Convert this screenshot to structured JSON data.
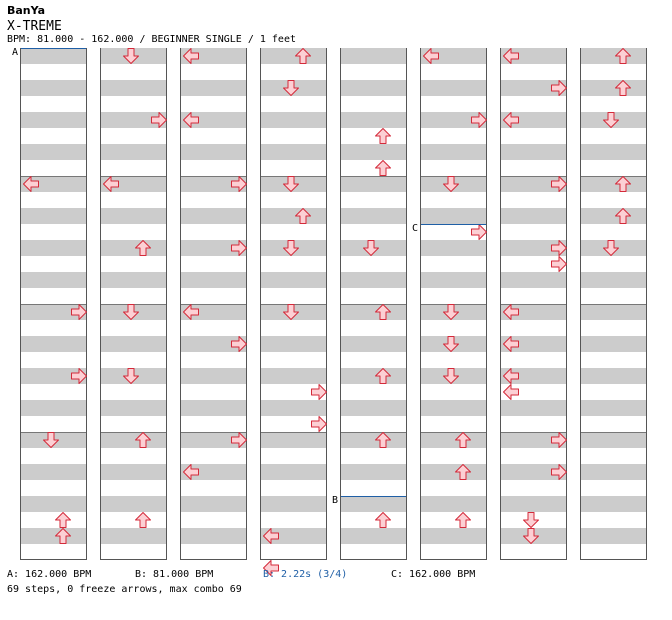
{
  "header": {
    "artist": "BanYa",
    "title": "X-TREME",
    "info": "BPM: 81.000 - 162.000 / BEGINNER SINGLE / 1 feet"
  },
  "chart": {
    "columns": 8,
    "measures_per_column": 4,
    "arrows": [
      {
        "col": 0,
        "beat": 4,
        "dir": "left"
      },
      {
        "col": 0,
        "beat": 8,
        "dir": "right"
      },
      {
        "col": 0,
        "beat": 10,
        "dir": "right"
      },
      {
        "col": 0,
        "beat": 12,
        "dir": "down"
      },
      {
        "col": 0,
        "beat": 14.5,
        "dir": "up"
      },
      {
        "col": 0,
        "beat": 15,
        "dir": "up"
      },
      {
        "col": 1,
        "beat": 0,
        "dir": "down"
      },
      {
        "col": 1,
        "beat": 2,
        "dir": "right"
      },
      {
        "col": 1,
        "beat": 4,
        "dir": "left"
      },
      {
        "col": 1,
        "beat": 6,
        "dir": "up"
      },
      {
        "col": 1,
        "beat": 8,
        "dir": "down"
      },
      {
        "col": 1,
        "beat": 10,
        "dir": "down"
      },
      {
        "col": 1,
        "beat": 12,
        "dir": "up"
      },
      {
        "col": 1,
        "beat": 14.5,
        "dir": "up"
      },
      {
        "col": 2,
        "beat": 0,
        "dir": "left"
      },
      {
        "col": 2,
        "beat": 2,
        "dir": "left"
      },
      {
        "col": 2,
        "beat": 4,
        "dir": "right"
      },
      {
        "col": 2,
        "beat": 6,
        "dir": "right"
      },
      {
        "col": 2,
        "beat": 8,
        "dir": "left"
      },
      {
        "col": 2,
        "beat": 9,
        "dir": "right"
      },
      {
        "col": 2,
        "beat": 12,
        "dir": "right"
      },
      {
        "col": 2,
        "beat": 13,
        "dir": "left"
      },
      {
        "col": 3,
        "beat": 0,
        "dir": "up"
      },
      {
        "col": 3,
        "beat": 1,
        "dir": "down"
      },
      {
        "col": 3,
        "beat": 4,
        "dir": "down"
      },
      {
        "col": 3,
        "beat": 5,
        "dir": "up"
      },
      {
        "col": 3,
        "beat": 6,
        "dir": "down"
      },
      {
        "col": 3,
        "beat": 8,
        "dir": "down"
      },
      {
        "col": 3,
        "beat": 10.5,
        "dir": "right"
      },
      {
        "col": 3,
        "beat": 11.5,
        "dir": "right"
      },
      {
        "col": 3,
        "beat": 15,
        "dir": "left"
      },
      {
        "col": 3,
        "beat": 16,
        "dir": "left"
      },
      {
        "col": 4,
        "beat": 2.5,
        "dir": "up"
      },
      {
        "col": 4,
        "beat": 3.5,
        "dir": "up"
      },
      {
        "col": 4,
        "beat": 6,
        "dir": "down"
      },
      {
        "col": 4,
        "beat": 8,
        "dir": "up"
      },
      {
        "col": 4,
        "beat": 10,
        "dir": "up"
      },
      {
        "col": 4,
        "beat": 12,
        "dir": "up"
      },
      {
        "col": 4,
        "beat": 14.5,
        "dir": "up"
      },
      {
        "col": 5,
        "beat": 0,
        "dir": "left"
      },
      {
        "col": 5,
        "beat": 2,
        "dir": "right"
      },
      {
        "col": 5,
        "beat": 4,
        "dir": "down"
      },
      {
        "col": 5,
        "beat": 5.5,
        "dir": "right"
      },
      {
        "col": 5,
        "beat": 8,
        "dir": "down"
      },
      {
        "col": 5,
        "beat": 9,
        "dir": "down"
      },
      {
        "col": 5,
        "beat": 10,
        "dir": "down"
      },
      {
        "col": 5,
        "beat": 12,
        "dir": "up"
      },
      {
        "col": 5,
        "beat": 13,
        "dir": "up"
      },
      {
        "col": 5,
        "beat": 14.5,
        "dir": "up"
      },
      {
        "col": 6,
        "beat": 0,
        "dir": "left"
      },
      {
        "col": 6,
        "beat": 1,
        "dir": "right"
      },
      {
        "col": 6,
        "beat": 2,
        "dir": "left"
      },
      {
        "col": 6,
        "beat": 4,
        "dir": "right"
      },
      {
        "col": 6,
        "beat": 6,
        "dir": "right"
      },
      {
        "col": 6,
        "beat": 6.5,
        "dir": "right"
      },
      {
        "col": 6,
        "beat": 8,
        "dir": "left"
      },
      {
        "col": 6,
        "beat": 9,
        "dir": "left"
      },
      {
        "col": 6,
        "beat": 10,
        "dir": "left"
      },
      {
        "col": 6,
        "beat": 10.5,
        "dir": "left"
      },
      {
        "col": 6,
        "beat": 12,
        "dir": "right"
      },
      {
        "col": 6,
        "beat": 13,
        "dir": "right"
      },
      {
        "col": 6,
        "beat": 14.5,
        "dir": "down"
      },
      {
        "col": 6,
        "beat": 15,
        "dir": "down"
      },
      {
        "col": 7,
        "beat": 0,
        "dir": "up"
      },
      {
        "col": 7,
        "beat": 1,
        "dir": "up"
      },
      {
        "col": 7,
        "beat": 2,
        "dir": "down"
      },
      {
        "col": 7,
        "beat": 4,
        "dir": "up"
      },
      {
        "col": 7,
        "beat": 5,
        "dir": "up"
      },
      {
        "col": 7,
        "beat": 6,
        "dir": "down"
      }
    ],
    "markers": [
      {
        "label": "A",
        "col": 0,
        "beat": 0
      },
      {
        "label": "C",
        "col": 5,
        "beat": 5.5
      },
      {
        "label": "B",
        "col": 4,
        "beat": 14
      }
    ]
  },
  "footer": {
    "bpm_a": "A: 162.000 BPM",
    "bpm_b": "B: 81.000 BPM",
    "stop_b": "B: 2.22s (3/4)",
    "bpm_c": "C: 162.000 BPM",
    "stats": "69 steps, 0 freeze arrows, max combo 69"
  },
  "colors": {
    "arrow_fill": "#fcd0d4",
    "arrow_stroke": "#d42a3a",
    "band": "#cccccc",
    "bpm_line": "#1f5fa6",
    "stop_text": "#1f5fa6"
  }
}
